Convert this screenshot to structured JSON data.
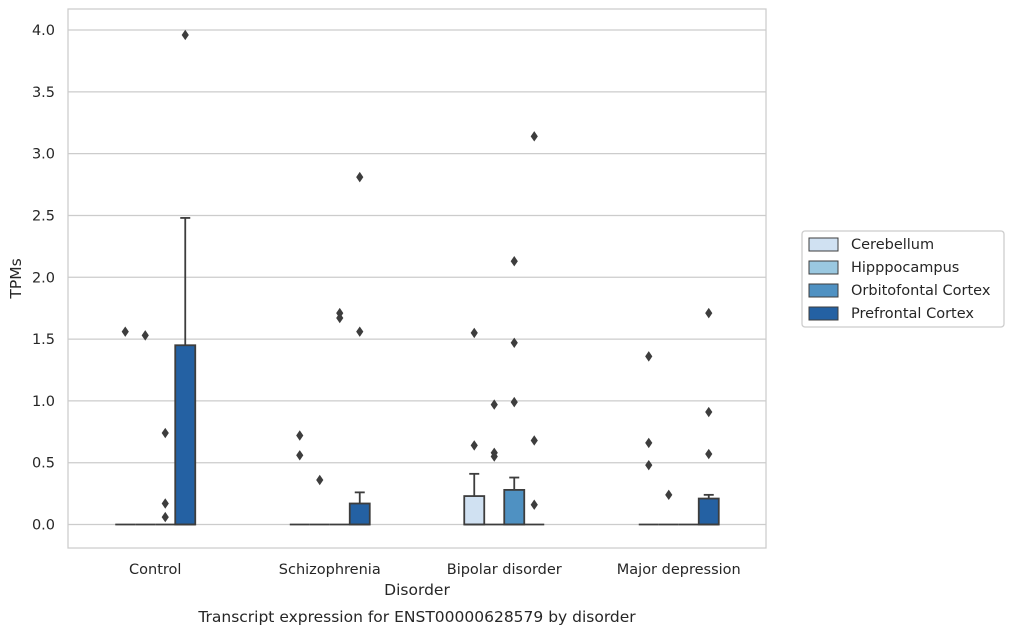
{
  "chart_data": {
    "type": "box",
    "xlabel": "Disorder",
    "ylabel": "TPMs",
    "caption": "Transcript expression for ENST00000628579 by disorder",
    "ylim": [
      -0.19,
      4.17
    ],
    "yticks": [
      0.0,
      0.5,
      1.0,
      1.5,
      2.0,
      2.5,
      3.0,
      3.5,
      4.0
    ],
    "ytick_labels": [
      "0.0",
      "0.5",
      "1.0",
      "1.5",
      "2.0",
      "2.5",
      "3.0",
      "3.5",
      "4.0"
    ],
    "grid": "horizontal",
    "legend_position": "right",
    "categories": [
      "Control",
      "Schizophrenia",
      "Bipolar disorder",
      "Major depression"
    ],
    "series": [
      {
        "name": "Cerebellum",
        "color": "#d0e1f2",
        "boxes": [
          {
            "q1": 0,
            "median": 0,
            "q3": 0,
            "whisker_low": 0,
            "whisker_high": 0,
            "outliers": [
              1.56
            ]
          },
          {
            "q1": 0,
            "median": 0,
            "q3": 0,
            "whisker_low": 0,
            "whisker_high": 0,
            "outliers": [
              0.72,
              0.56
            ]
          },
          {
            "q1": 0,
            "median": 0,
            "q3": 0.23,
            "whisker_low": 0,
            "whisker_high": 0.41,
            "outliers": [
              1.55,
              0.64
            ]
          },
          {
            "q1": 0,
            "median": 0,
            "q3": 0,
            "whisker_low": 0,
            "whisker_high": 0,
            "outliers": [
              1.36,
              0.66,
              0.48
            ]
          }
        ]
      },
      {
        "name": "Hipppocampus",
        "color": "#9ac8e0",
        "boxes": [
          {
            "q1": 0,
            "median": 0,
            "q3": 0,
            "whisker_low": 0,
            "whisker_high": 0,
            "outliers": [
              1.53
            ]
          },
          {
            "q1": 0,
            "median": 0,
            "q3": 0,
            "whisker_low": 0,
            "whisker_high": 0,
            "outliers": [
              0.36
            ]
          },
          {
            "q1": 0,
            "median": 0,
            "q3": 0,
            "whisker_low": 0,
            "whisker_high": 0,
            "outliers": [
              0.97,
              0.58,
              0.55
            ]
          },
          {
            "q1": 0,
            "median": 0,
            "q3": 0,
            "whisker_low": 0,
            "whisker_high": 0,
            "outliers": [
              0.24
            ]
          }
        ]
      },
      {
        "name": "Orbitofontal Cortex",
        "color": "#4f91c2",
        "boxes": [
          {
            "q1": 0,
            "median": 0,
            "q3": 0,
            "whisker_low": 0,
            "whisker_high": 0,
            "outliers": [
              0.74,
              0.17,
              0.06
            ]
          },
          {
            "q1": 0,
            "median": 0,
            "q3": 0,
            "whisker_low": 0,
            "whisker_high": 0,
            "outliers": [
              1.71,
              1.67
            ]
          },
          {
            "q1": 0,
            "median": 0,
            "q3": 0.28,
            "whisker_low": 0,
            "whisker_high": 0.38,
            "outliers": [
              2.13,
              1.47,
              0.99
            ]
          },
          {
            "q1": 0,
            "median": 0,
            "q3": 0,
            "whisker_low": 0,
            "whisker_high": 0,
            "outliers": []
          }
        ]
      },
      {
        "name": "Prefrontal Cortex",
        "color": "#2461a3",
        "boxes": [
          {
            "q1": 0,
            "median": 0,
            "q3": 1.45,
            "whisker_low": 0,
            "whisker_high": 2.48,
            "outliers": [
              3.96
            ]
          },
          {
            "q1": 0,
            "median": 0,
            "q3": 0.17,
            "whisker_low": 0,
            "whisker_high": 0.26,
            "outliers": [
              2.81,
              1.56
            ]
          },
          {
            "q1": 0,
            "median": 0,
            "q3": 0,
            "whisker_low": 0,
            "whisker_high": 0,
            "outliers": [
              3.14,
              0.68,
              0.16
            ]
          },
          {
            "q1": 0,
            "median": 0,
            "q3": 0.21,
            "whisker_low": 0,
            "whisker_high": 0.24,
            "outliers": [
              1.71,
              0.91,
              0.57
            ]
          }
        ]
      }
    ]
  }
}
